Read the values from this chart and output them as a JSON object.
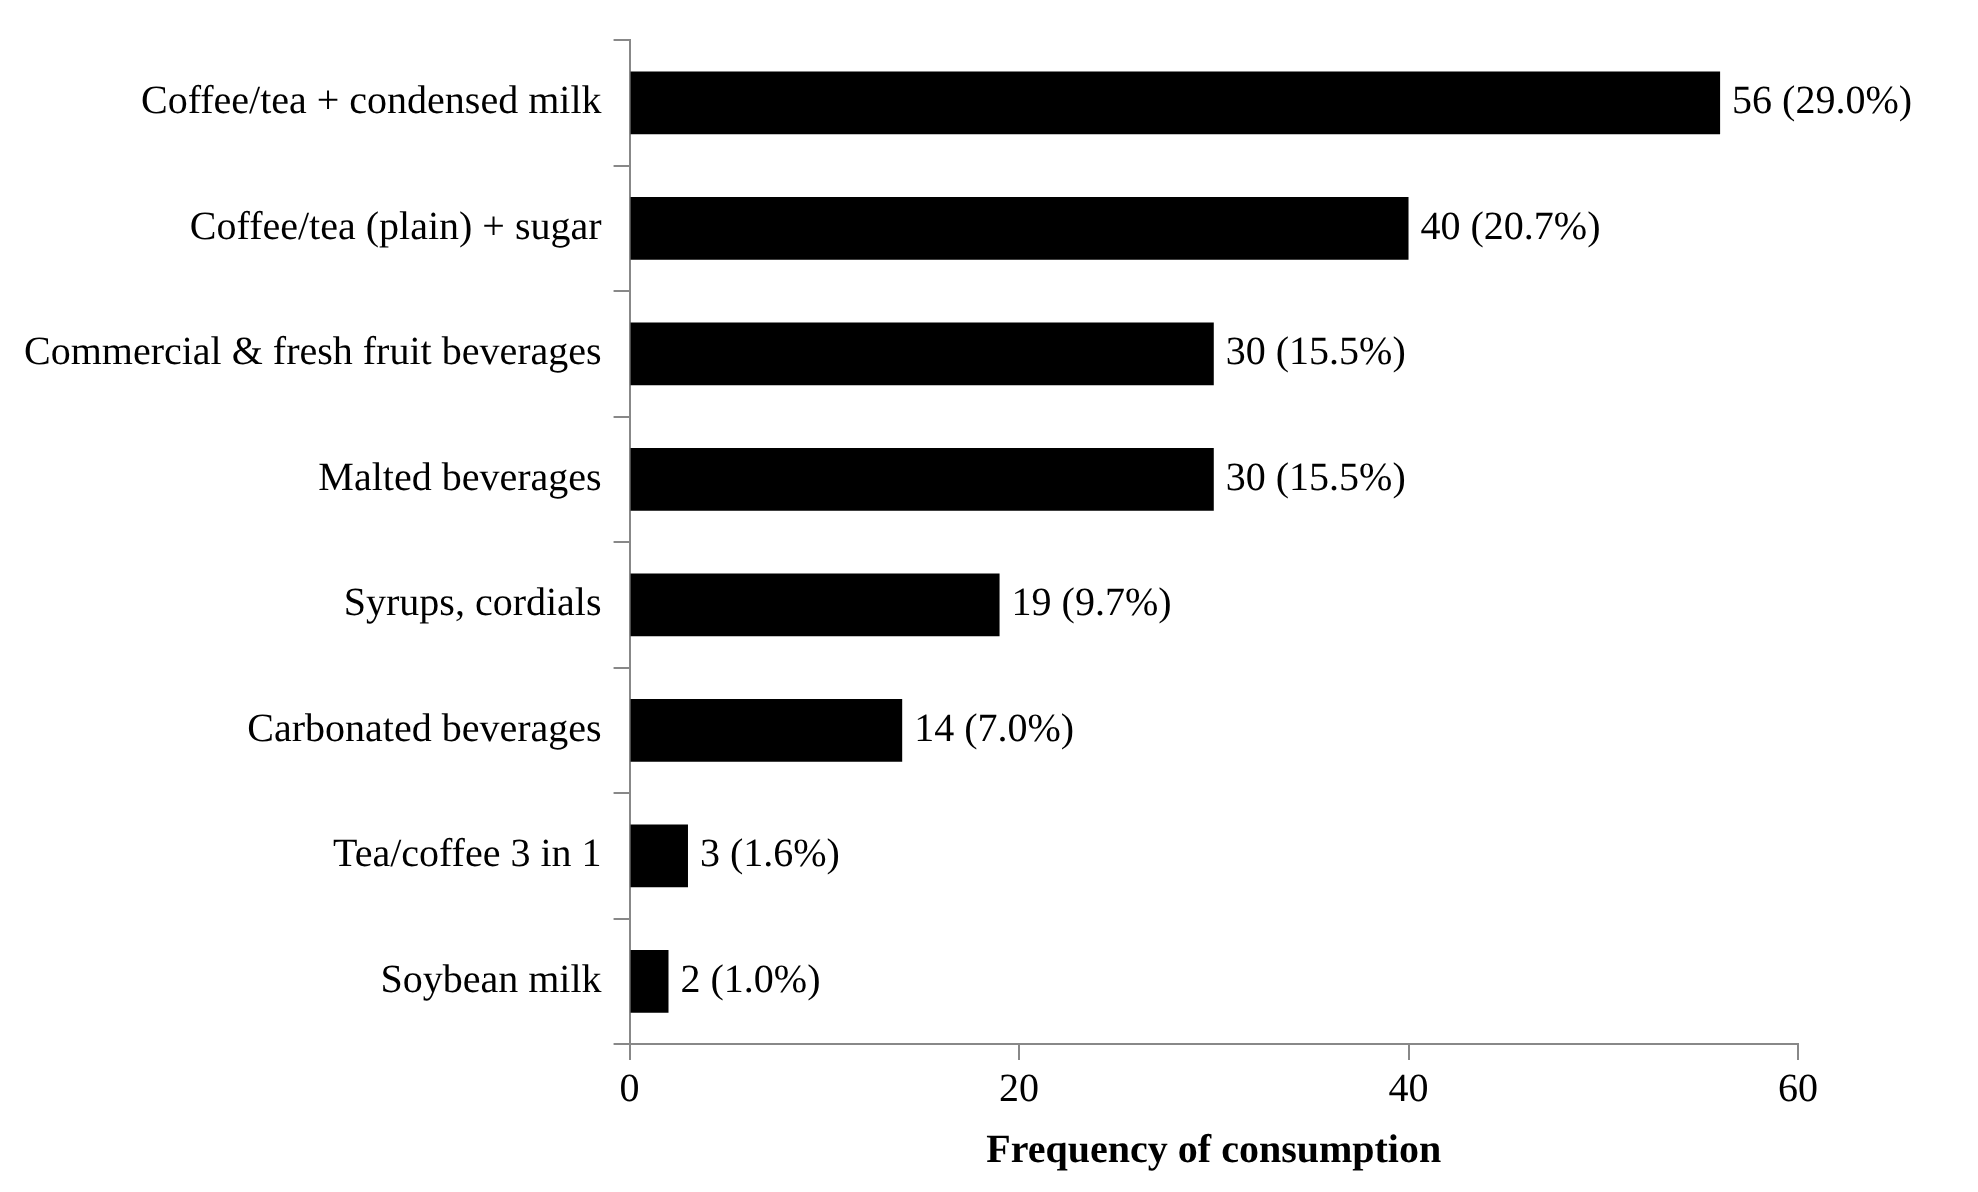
{
  "chart_data": {
    "type": "bar",
    "orientation": "horizontal",
    "xlabel": "Frequency of consumption",
    "categories": [
      "Coffee/tea + condensed milk",
      "Coffee/tea (plain) + sugar",
      "Commercial & fresh fruit beverages",
      "Malted beverages",
      "Syrups, cordials",
      "Carbonated beverages",
      "Tea/coffee 3 in 1",
      "Soybean milk"
    ],
    "values": [
      56,
      40,
      30,
      30,
      19,
      14,
      3,
      2
    ],
    "value_labels": [
      "56 (29.0%)",
      "40 (20.7%)",
      "30 (15.5%)",
      "30 (15.5%)",
      "19 (9.7%)",
      "14 (7.0%)",
      "3 (1.6%)",
      "2 (1.0%)"
    ],
    "color": "#000000",
    "xlim": [
      0,
      60
    ],
    "xticks": [
      0,
      20,
      40,
      60
    ],
    "grid": false,
    "legend": false
  }
}
